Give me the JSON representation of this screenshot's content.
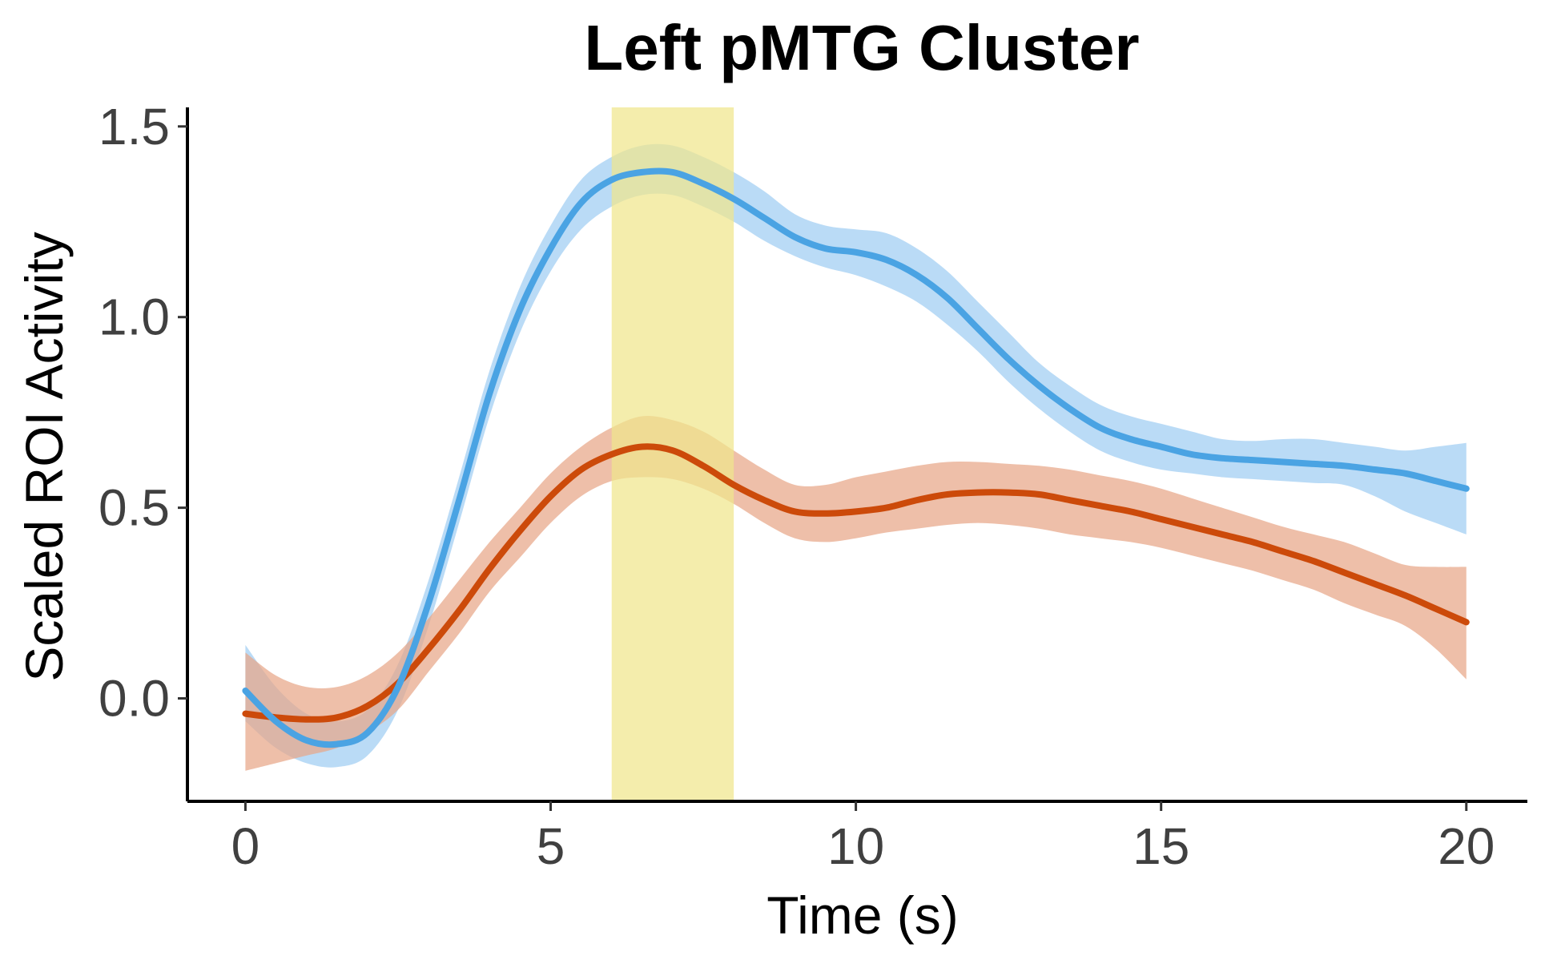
{
  "chart_data": {
    "type": "line",
    "title": "Left pMTG Cluster",
    "xlabel": "Time (s)",
    "ylabel": "Scaled ROI Activity",
    "xlim": [
      -0.95,
      21.0
    ],
    "ylim": [
      -0.27,
      1.55
    ],
    "xticks": [
      0,
      5,
      10,
      15,
      20
    ],
    "xtick_labels": [
      "0",
      "5",
      "10",
      "15",
      "20"
    ],
    "yticks": [
      0.0,
      0.5,
      1.0,
      1.5
    ],
    "ytick_labels": [
      "0.0",
      "0.5",
      "1.0",
      "1.5"
    ],
    "grid": false,
    "legend": "none",
    "highlight": {
      "x_start": 6,
      "x_end": 8,
      "color": "#f0e68c"
    },
    "x": [
      0,
      0.5,
      1,
      1.5,
      2,
      2.5,
      3,
      3.5,
      4,
      4.5,
      5,
      5.5,
      6,
      6.5,
      7,
      7.5,
      8,
      8.5,
      9,
      9.5,
      10,
      10.5,
      11,
      11.5,
      12,
      12.5,
      13,
      13.5,
      14,
      14.5,
      15,
      15.5,
      16,
      16.5,
      17,
      17.5,
      18,
      18.5,
      19,
      19.5,
      20
    ],
    "series": [
      {
        "color": "#4aa3e3",
        "band_color": "#9fcdf2",
        "values": [
          0.02,
          -0.06,
          -0.11,
          -0.12,
          -0.09,
          0.03,
          0.25,
          0.52,
          0.8,
          1.02,
          1.18,
          1.3,
          1.36,
          1.38,
          1.38,
          1.35,
          1.31,
          1.26,
          1.21,
          1.18,
          1.17,
          1.15,
          1.11,
          1.05,
          0.97,
          0.89,
          0.82,
          0.76,
          0.71,
          0.68,
          0.66,
          0.64,
          0.63,
          0.625,
          0.62,
          0.615,
          0.61,
          0.6,
          0.59,
          0.57,
          0.55
        ],
        "lower": [
          -0.06,
          -0.13,
          -0.17,
          -0.18,
          -0.15,
          -0.03,
          0.19,
          0.46,
          0.74,
          0.96,
          1.12,
          1.23,
          1.29,
          1.32,
          1.32,
          1.29,
          1.25,
          1.2,
          1.16,
          1.13,
          1.11,
          1.08,
          1.04,
          0.98,
          0.91,
          0.83,
          0.76,
          0.7,
          0.65,
          0.62,
          0.6,
          0.59,
          0.58,
          0.575,
          0.57,
          0.565,
          0.56,
          0.53,
          0.49,
          0.46,
          0.43
        ],
        "upper": [
          0.14,
          0.03,
          -0.04,
          -0.06,
          -0.03,
          0.09,
          0.31,
          0.58,
          0.86,
          1.08,
          1.24,
          1.36,
          1.42,
          1.45,
          1.45,
          1.42,
          1.38,
          1.33,
          1.27,
          1.24,
          1.23,
          1.22,
          1.18,
          1.12,
          1.04,
          0.96,
          0.88,
          0.82,
          0.77,
          0.74,
          0.72,
          0.7,
          0.68,
          0.675,
          0.68,
          0.68,
          0.67,
          0.66,
          0.65,
          0.66,
          0.67
        ]
      },
      {
        "color": "#cc4a0a",
        "band_color": "#e8a688",
        "values": [
          -0.04,
          -0.05,
          -0.055,
          -0.05,
          -0.02,
          0.04,
          0.13,
          0.23,
          0.34,
          0.44,
          0.53,
          0.6,
          0.64,
          0.66,
          0.65,
          0.61,
          0.56,
          0.52,
          0.49,
          0.485,
          0.49,
          0.5,
          0.52,
          0.535,
          0.54,
          0.54,
          0.535,
          0.52,
          0.505,
          0.49,
          0.47,
          0.45,
          0.43,
          0.41,
          0.385,
          0.36,
          0.33,
          0.3,
          0.27,
          0.235,
          0.2
        ],
        "lower": [
          -0.19,
          -0.17,
          -0.15,
          -0.13,
          -0.09,
          -0.03,
          0.07,
          0.17,
          0.28,
          0.37,
          0.46,
          0.53,
          0.57,
          0.58,
          0.575,
          0.55,
          0.51,
          0.46,
          0.42,
          0.41,
          0.42,
          0.435,
          0.445,
          0.455,
          0.46,
          0.455,
          0.445,
          0.43,
          0.42,
          0.41,
          0.395,
          0.375,
          0.355,
          0.335,
          0.31,
          0.285,
          0.25,
          0.22,
          0.19,
          0.13,
          0.05
        ],
        "upper": [
          0.12,
          0.06,
          0.03,
          0.03,
          0.06,
          0.12,
          0.21,
          0.31,
          0.41,
          0.5,
          0.59,
          0.66,
          0.71,
          0.74,
          0.73,
          0.7,
          0.65,
          0.6,
          0.56,
          0.56,
          0.58,
          0.595,
          0.61,
          0.62,
          0.62,
          0.615,
          0.61,
          0.6,
          0.585,
          0.57,
          0.55,
          0.525,
          0.5,
          0.475,
          0.45,
          0.43,
          0.41,
          0.38,
          0.35,
          0.345,
          0.345
        ]
      }
    ]
  }
}
